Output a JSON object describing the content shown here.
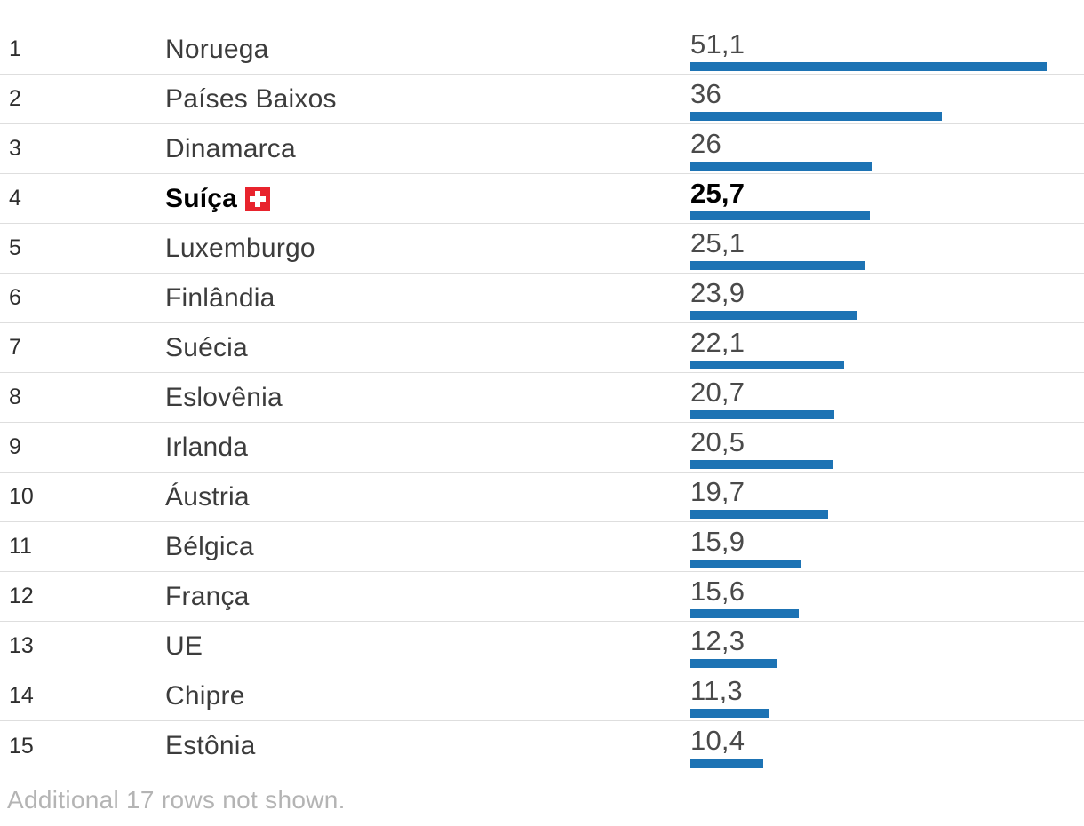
{
  "chart_data": {
    "type": "bar",
    "title": "",
    "categories": [
      "Noruega",
      "Países Baixos",
      "Dinamarca",
      "Suíça",
      "Luxemburgo",
      "Finlândia",
      "Suécia",
      "Eslovênia",
      "Irlanda",
      "Áustria",
      "Bélgica",
      "França",
      "UE",
      "Chipre",
      "Estônia"
    ],
    "values": [
      51.1,
      36,
      26,
      25.7,
      25.1,
      23.9,
      22.1,
      20.7,
      20.5,
      19.7,
      15.9,
      15.6,
      12.3,
      11.3,
      10.4
    ],
    "value_labels": [
      "51,1",
      "36",
      "26",
      "25,7",
      "25,1",
      "23,9",
      "22,1",
      "20,7",
      "20,5",
      "19,7",
      "15,9",
      "15,6",
      "12,3",
      "11,3",
      "10,4"
    ],
    "xlabel": "",
    "ylabel": "",
    "xlim": [
      0,
      51.1
    ],
    "grid": false,
    "legend": false,
    "bar_color": "#1d73b4",
    "highlighted_category": "Suíça"
  },
  "table": {
    "max_value": 51.1,
    "bar_color": "#1d73b4",
    "flag_red": "#e8232d",
    "flag_white": "#ffffff",
    "rows": [
      {
        "rank": "1",
        "country": "Noruega",
        "value": 51.1,
        "value_label": "51,1",
        "highlighted": false,
        "flag": ""
      },
      {
        "rank": "2",
        "country": "Países Baixos",
        "value": 36,
        "value_label": "36",
        "highlighted": false,
        "flag": ""
      },
      {
        "rank": "3",
        "country": "Dinamarca",
        "value": 26,
        "value_label": "26",
        "highlighted": false,
        "flag": ""
      },
      {
        "rank": "4",
        "country": "Suíça",
        "value": 25.7,
        "value_label": "25,7",
        "highlighted": true,
        "flag": "ch"
      },
      {
        "rank": "5",
        "country": "Luxemburgo",
        "value": 25.1,
        "value_label": "25,1",
        "highlighted": false,
        "flag": ""
      },
      {
        "rank": "6",
        "country": "Finlândia",
        "value": 23.9,
        "value_label": "23,9",
        "highlighted": false,
        "flag": ""
      },
      {
        "rank": "7",
        "country": "Suécia",
        "value": 22.1,
        "value_label": "22,1",
        "highlighted": false,
        "flag": ""
      },
      {
        "rank": "8",
        "country": "Eslovênia",
        "value": 20.7,
        "value_label": "20,7",
        "highlighted": false,
        "flag": ""
      },
      {
        "rank": "9",
        "country": "Irlanda",
        "value": 20.5,
        "value_label": "20,5",
        "highlighted": false,
        "flag": ""
      },
      {
        "rank": "10",
        "country": "Áustria",
        "value": 19.7,
        "value_label": "19,7",
        "highlighted": false,
        "flag": ""
      },
      {
        "rank": "11",
        "country": "Bélgica",
        "value": 15.9,
        "value_label": "15,9",
        "highlighted": false,
        "flag": ""
      },
      {
        "rank": "12",
        "country": "França",
        "value": 15.6,
        "value_label": "15,6",
        "highlighted": false,
        "flag": ""
      },
      {
        "rank": "13",
        "country": "UE",
        "value": 12.3,
        "value_label": "12,3",
        "highlighted": false,
        "flag": ""
      },
      {
        "rank": "14",
        "country": "Chipre",
        "value": 11.3,
        "value_label": "11,3",
        "highlighted": false,
        "flag": ""
      },
      {
        "rank": "15",
        "country": "Estônia",
        "value": 10.4,
        "value_label": "10,4",
        "highlighted": false,
        "flag": ""
      }
    ]
  },
  "footer": {
    "note": "Additional 17 rows not shown."
  }
}
